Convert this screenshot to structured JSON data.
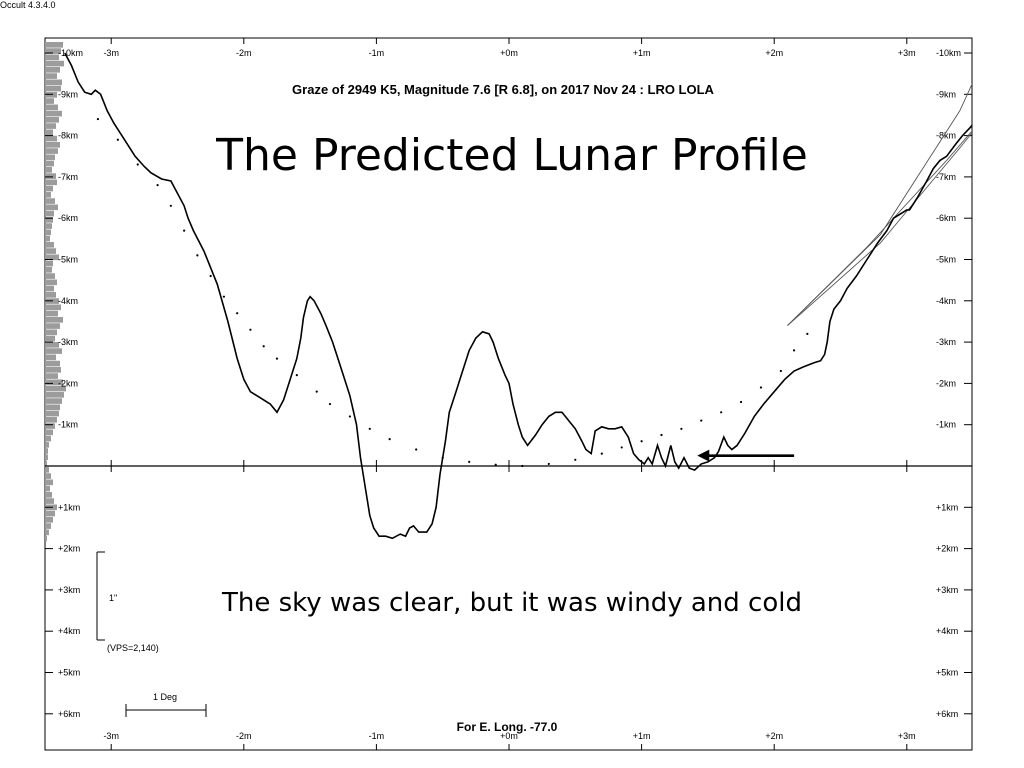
{
  "app_version": "Occult 4.3.4.0",
  "slide": {
    "title": "The Predicted Lunar Profile",
    "subtitle": "The sky was clear, but it was windy and cold"
  },
  "chart_data": {
    "type": "line",
    "title": "Graze of  2949 K5,  Magnitude 7.6 [R 6.8],  on 2017 Nov 24  :  LRO LOLA",
    "footer": "For E. Long. -77.0",
    "x_ticks": [
      {
        "v": -3,
        "label": "-3m"
      },
      {
        "v": -2,
        "label": "-2m"
      },
      {
        "v": -1,
        "label": "-1m"
      },
      {
        "v": 0,
        "label": "+0m"
      },
      {
        "v": 1,
        "label": "+1m"
      },
      {
        "v": 2,
        "label": "+2m"
      },
      {
        "v": 3,
        "label": "+3m"
      }
    ],
    "y_ticks": [
      {
        "v": -10,
        "label": "-10km"
      },
      {
        "v": -9,
        "label": "-9km"
      },
      {
        "v": -8,
        "label": "-8km"
      },
      {
        "v": -7,
        "label": "-7km"
      },
      {
        "v": -6,
        "label": "-6km"
      },
      {
        "v": -5,
        "label": "-5km"
      },
      {
        "v": -4,
        "label": "-4km"
      },
      {
        "v": -3,
        "label": "-3km"
      },
      {
        "v": -2,
        "label": "-2km"
      },
      {
        "v": -1,
        "label": "-1km"
      },
      {
        "v": 1,
        "label": "+1km"
      },
      {
        "v": 2,
        "label": "+2km"
      },
      {
        "v": 3,
        "label": "+3km"
      },
      {
        "v": 4,
        "label": "+4km"
      },
      {
        "v": 5,
        "label": "+5km"
      },
      {
        "v": 6,
        "label": "+6km"
      }
    ],
    "xlim": [
      -3.4,
      3.5
    ],
    "ylim": [
      -10.4,
      6.8
    ],
    "series": [
      {
        "values": [
          [
            -3.35,
            -10.0
          ],
          [
            -3.3,
            -9.7
          ],
          [
            -3.25,
            -9.3
          ],
          [
            -3.2,
            -9.05
          ],
          [
            -3.15,
            -9.0
          ],
          [
            -3.12,
            -9.1
          ],
          [
            -3.08,
            -9.0
          ],
          [
            -3.03,
            -8.6
          ],
          [
            -2.98,
            -8.3
          ],
          [
            -2.9,
            -7.9
          ],
          [
            -2.82,
            -7.5
          ],
          [
            -2.75,
            -7.25
          ],
          [
            -2.7,
            -7.1
          ],
          [
            -2.62,
            -6.95
          ],
          [
            -2.55,
            -6.9
          ],
          [
            -2.5,
            -6.6
          ],
          [
            -2.45,
            -6.3
          ],
          [
            -2.42,
            -6.0
          ],
          [
            -2.38,
            -5.7
          ],
          [
            -2.3,
            -5.2
          ],
          [
            -2.2,
            -4.4
          ],
          [
            -2.12,
            -3.5
          ],
          [
            -2.05,
            -2.6
          ],
          [
            -2.0,
            -2.1
          ],
          [
            -1.95,
            -1.8
          ],
          [
            -1.9,
            -1.7
          ],
          [
            -1.85,
            -1.6
          ],
          [
            -1.8,
            -1.5
          ],
          [
            -1.75,
            -1.3
          ],
          [
            -1.7,
            -1.6
          ],
          [
            -1.65,
            -2.1
          ],
          [
            -1.6,
            -2.6
          ],
          [
            -1.57,
            -3.1
          ],
          [
            -1.55,
            -3.6
          ],
          [
            -1.52,
            -4.0
          ],
          [
            -1.5,
            -4.1
          ],
          [
            -1.47,
            -4.0
          ],
          [
            -1.42,
            -3.7
          ],
          [
            -1.38,
            -3.4
          ],
          [
            -1.33,
            -3.0
          ],
          [
            -1.28,
            -2.5
          ],
          [
            -1.25,
            -2.2
          ],
          [
            -1.2,
            -1.7
          ],
          [
            -1.15,
            -1.0
          ],
          [
            -1.12,
            -0.2
          ],
          [
            -1.08,
            0.6
          ],
          [
            -1.05,
            1.2
          ],
          [
            -1.02,
            1.5
          ],
          [
            -0.98,
            1.7
          ],
          [
            -0.93,
            1.7
          ],
          [
            -0.88,
            1.75
          ],
          [
            -0.82,
            1.65
          ],
          [
            -0.78,
            1.7
          ],
          [
            -0.75,
            1.5
          ],
          [
            -0.72,
            1.45
          ],
          [
            -0.68,
            1.6
          ],
          [
            -0.62,
            1.6
          ],
          [
            -0.58,
            1.4
          ],
          [
            -0.55,
            1.0
          ],
          [
            -0.52,
            0.2
          ],
          [
            -0.48,
            -0.6
          ],
          [
            -0.45,
            -1.3
          ],
          [
            -0.4,
            -1.8
          ],
          [
            -0.35,
            -2.3
          ],
          [
            -0.3,
            -2.8
          ],
          [
            -0.25,
            -3.1
          ],
          [
            -0.2,
            -3.25
          ],
          [
            -0.15,
            -3.2
          ],
          [
            -0.12,
            -3.0
          ],
          [
            -0.08,
            -2.6
          ],
          [
            -0.03,
            -2.2
          ],
          [
            0.0,
            -2.0
          ],
          [
            0.03,
            -1.5
          ],
          [
            0.07,
            -1.0
          ],
          [
            0.1,
            -0.7
          ],
          [
            0.14,
            -0.5
          ],
          [
            0.2,
            -0.75
          ],
          [
            0.25,
            -1.0
          ],
          [
            0.3,
            -1.2
          ],
          [
            0.35,
            -1.3
          ],
          [
            0.4,
            -1.3
          ],
          [
            0.45,
            -1.1
          ],
          [
            0.5,
            -0.9
          ],
          [
            0.55,
            -0.6
          ],
          [
            0.58,
            -0.4
          ],
          [
            0.62,
            -0.3
          ],
          [
            0.65,
            -0.85
          ],
          [
            0.7,
            -0.95
          ],
          [
            0.75,
            -0.9
          ],
          [
            0.8,
            -0.9
          ],
          [
            0.85,
            -0.95
          ],
          [
            0.9,
            -0.7
          ],
          [
            0.94,
            -0.3
          ],
          [
            0.98,
            -0.15
          ],
          [
            1.02,
            -0.05
          ],
          [
            1.05,
            -0.2
          ],
          [
            1.08,
            -0.05
          ],
          [
            1.12,
            -0.5
          ],
          [
            1.15,
            -0.2
          ],
          [
            1.18,
            0.0
          ],
          [
            1.22,
            -0.5
          ],
          [
            1.25,
            -0.1
          ],
          [
            1.28,
            0.05
          ],
          [
            1.32,
            -0.2
          ],
          [
            1.36,
            0.05
          ],
          [
            1.4,
            0.1
          ],
          [
            1.45,
            -0.05
          ],
          [
            1.5,
            -0.1
          ],
          [
            1.55,
            -0.2
          ],
          [
            1.58,
            -0.35
          ],
          [
            1.62,
            -0.7
          ],
          [
            1.65,
            -0.5
          ],
          [
            1.68,
            -0.4
          ],
          [
            1.72,
            -0.5
          ],
          [
            1.78,
            -0.8
          ],
          [
            1.85,
            -1.2
          ],
          [
            1.92,
            -1.5
          ],
          [
            2.0,
            -1.8
          ],
          [
            2.08,
            -2.1
          ],
          [
            2.15,
            -2.3
          ],
          [
            2.22,
            -2.4
          ],
          [
            2.3,
            -2.5
          ],
          [
            2.35,
            -2.55
          ],
          [
            2.38,
            -2.7
          ],
          [
            2.4,
            -3.0
          ],
          [
            2.42,
            -3.5
          ],
          [
            2.45,
            -3.8
          ],
          [
            2.5,
            -4.0
          ],
          [
            2.55,
            -4.3
          ],
          [
            2.62,
            -4.6
          ],
          [
            2.7,
            -5.0
          ],
          [
            2.78,
            -5.4
          ],
          [
            2.85,
            -5.7
          ],
          [
            2.9,
            -6.0
          ],
          [
            2.95,
            -6.1
          ],
          [
            3.0,
            -6.2
          ],
          [
            3.02,
            -6.2
          ],
          [
            3.08,
            -6.5
          ],
          [
            3.15,
            -6.9
          ],
          [
            3.2,
            -7.2
          ],
          [
            3.25,
            -7.4
          ],
          [
            3.3,
            -7.5
          ],
          [
            3.37,
            -7.8
          ],
          [
            3.42,
            -8.0
          ],
          [
            3.48,
            -8.2
          ],
          [
            3.55,
            -8.5
          ],
          [
            3.6,
            -8.7
          ],
          [
            3.65,
            -8.8
          ],
          [
            3.7,
            -9.0
          ],
          [
            3.75,
            -9.1
          ],
          [
            3.78,
            -8.8
          ],
          [
            3.82,
            -8.95
          ],
          [
            3.86,
            -9.2
          ],
          [
            3.9,
            -9.5
          ],
          [
            3.95,
            -9.8
          ],
          [
            3.98,
            -10.0
          ]
        ]
      }
    ],
    "limit_lines": [
      [
        [
          2.1,
          -3.4
        ],
        [
          2.8,
          -5.4
        ],
        [
          3.4,
          -7.7
        ],
        [
          4.0,
          -10.1
        ]
      ],
      [
        [
          2.1,
          -3.4
        ],
        [
          2.8,
          -5.6
        ],
        [
          3.4,
          -8.6
        ],
        [
          3.7,
          -10.7
        ]
      ],
      [
        [
          2.1,
          -3.4
        ],
        [
          2.7,
          -5.3
        ],
        [
          3.3,
          -7.4
        ],
        [
          4.0,
          -10.0
        ]
      ]
    ],
    "dotted_profile": [
      [
        -3.1,
        -8.4
      ],
      [
        -2.95,
        -7.9
      ],
      [
        -2.8,
        -7.3
      ],
      [
        -2.65,
        -6.8
      ],
      [
        -2.55,
        -6.3
      ],
      [
        -2.45,
        -5.7
      ],
      [
        -2.35,
        -5.1
      ],
      [
        -2.25,
        -4.6
      ],
      [
        -2.15,
        -4.1
      ],
      [
        -2.05,
        -3.7
      ],
      [
        -1.95,
        -3.3
      ],
      [
        -1.85,
        -2.9
      ],
      [
        -1.75,
        -2.6
      ],
      [
        -1.6,
        -2.2
      ],
      [
        -1.45,
        -1.8
      ],
      [
        -1.35,
        -1.5
      ],
      [
        -1.2,
        -1.2
      ],
      [
        -1.05,
        -0.9
      ],
      [
        -0.9,
        -0.65
      ],
      [
        -0.7,
        -0.4
      ],
      [
        -0.5,
        -0.2
      ],
      [
        -0.3,
        -0.1
      ],
      [
        -0.1,
        -0.03
      ],
      [
        0.1,
        0.0
      ],
      [
        0.3,
        -0.05
      ],
      [
        0.5,
        -0.15
      ],
      [
        0.7,
        -0.3
      ],
      [
        0.85,
        -0.45
      ],
      [
        1.0,
        -0.6
      ],
      [
        1.15,
        -0.75
      ],
      [
        1.3,
        -0.9
      ],
      [
        1.45,
        -1.1
      ],
      [
        1.6,
        -1.3
      ],
      [
        1.75,
        -1.55
      ],
      [
        1.9,
        -1.9
      ],
      [
        2.05,
        -2.3
      ],
      [
        2.15,
        -2.8
      ],
      [
        2.25,
        -3.2
      ]
    ],
    "arrow": {
      "from": [
        2.15,
        -0.25
      ],
      "to": [
        1.42,
        -0.25
      ]
    },
    "scale_bar": {
      "label": "1\"",
      "vps": "(VPS=2,140)"
    },
    "degree_bar": {
      "label": "1 Deg"
    }
  }
}
